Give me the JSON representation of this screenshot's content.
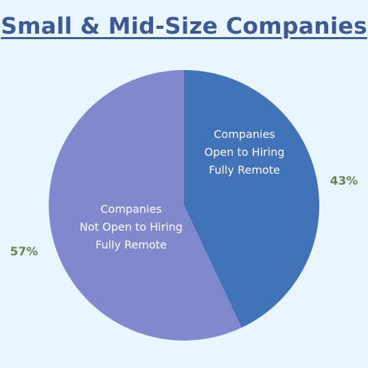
{
  "chart_data": {
    "type": "pie",
    "title": "Small & Mid-Size Companies",
    "slices": [
      {
        "label_lines": [
          "Companies",
          "Open to Hiring",
          "Fully Remote"
        ],
        "value": 43,
        "display": "43%",
        "color": "#4272b8"
      },
      {
        "label_lines": [
          "Companies",
          "Not Open to Hiring",
          "Fully Remote"
        ],
        "value": 57,
        "display": "57%",
        "color": "#8089cb"
      }
    ],
    "legend": "none"
  },
  "colors": {
    "background": "#eaf6fd",
    "title": "#3d5a94",
    "percent_text": "#6a8456",
    "slice_text": "#ffffff"
  }
}
